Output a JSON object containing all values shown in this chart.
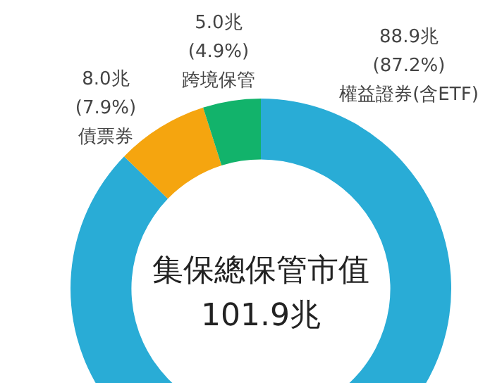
{
  "chart_data": {
    "type": "donut",
    "title": "集保總保管市值",
    "subtitle": "101.9兆",
    "categories": [
      "權益證券(含ETF)",
      "債票券",
      "跨境保管"
    ],
    "values": [
      88.9,
      8.0,
      5.0
    ],
    "colors": [
      "#29acd6",
      "#f5a50f",
      "#12b36b"
    ],
    "value_labels": [
      "88.9兆 (87.2%)",
      "8.0兆 (7.9%)",
      "5.0兆 (4.9%)"
    ],
    "legend": false
  }
}
